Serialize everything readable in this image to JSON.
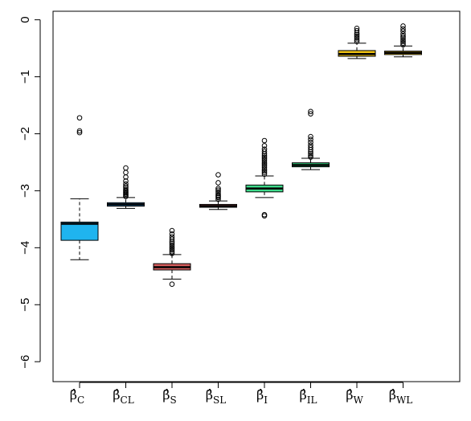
{
  "chart_data": {
    "type": "box",
    "title": "",
    "xlabel": "",
    "ylabel": "",
    "ylim": [
      -6.35,
      0.15
    ],
    "y_ticks": [
      0,
      -1,
      -2,
      -3,
      -4,
      -5,
      -6
    ],
    "y_tick_labels": [
      "0",
      "−1",
      "−2",
      "−3",
      "−4",
      "−5",
      "−6"
    ],
    "grid": false,
    "legend": "none",
    "categories": [
      {
        "symbol": "β̂",
        "sub": "C",
        "color": "#1fb4ef",
        "whisker_low": -4.21,
        "q1": -3.87,
        "median": -3.58,
        "q3": -3.55,
        "whisker_high": -3.14,
        "outliers": [
          -1.72,
          -1.95,
          -1.98
        ]
      },
      {
        "symbol": "β̂",
        "sub": "CL",
        "color": "#2a93d8",
        "whisker_low": -3.31,
        "q1": -3.27,
        "median": -3.24,
        "q3": -3.21,
        "whisker_high": -3.12,
        "outliers": [
          -3.1,
          -3.08,
          -3.06,
          -3.04,
          -3.02,
          -3.0,
          -2.98,
          -2.95,
          -2.92,
          -2.88,
          -2.83,
          -2.76,
          -2.68,
          -2.6
        ]
      },
      {
        "symbol": "β̂",
        "sub": "S",
        "color": "#d85e5e",
        "whisker_low": -4.55,
        "q1": -4.39,
        "median": -4.34,
        "q3": -4.28,
        "whisker_high": -4.12,
        "outliers": [
          -4.64,
          -4.1,
          -4.07,
          -4.04,
          -4.01,
          -3.98,
          -3.95,
          -3.92,
          -3.89,
          -3.85,
          -3.81,
          -3.76,
          -3.7
        ]
      },
      {
        "symbol": "β̂",
        "sub": "SL",
        "color": "#b85c5c",
        "whisker_low": -3.33,
        "q1": -3.29,
        "median": -3.27,
        "q3": -3.24,
        "whisker_high": -3.18,
        "outliers": [
          -3.15,
          -3.12,
          -3.1,
          -3.08,
          -3.05,
          -3.02,
          -2.99,
          -2.96,
          -2.86,
          -2.72
        ]
      },
      {
        "symbol": "β̂",
        "sub": "I",
        "color": "#3ed98a",
        "whisker_low": -3.12,
        "q1": -3.02,
        "median": -2.96,
        "q3": -2.9,
        "whisker_high": -2.74,
        "outliers": [
          -3.42,
          -3.44,
          -2.71,
          -2.68,
          -2.65,
          -2.62,
          -2.59,
          -2.56,
          -2.53,
          -2.5,
          -2.47,
          -2.44,
          -2.41,
          -2.38,
          -2.35,
          -2.31,
          -2.27,
          -2.21,
          -2.12
        ]
      },
      {
        "symbol": "β̂",
        "sub": "IL",
        "color": "#2ebd73",
        "whisker_low": -2.63,
        "q1": -2.58,
        "median": -2.55,
        "q3": -2.51,
        "whisker_high": -2.43,
        "outliers": [
          -2.41,
          -2.38,
          -2.35,
          -2.32,
          -2.28,
          -2.24,
          -2.2,
          -2.15,
          -2.1,
          -2.05,
          -1.65,
          -1.61
        ]
      },
      {
        "symbol": "β̂",
        "sub": "W",
        "color": "#eec214",
        "whisker_low": -0.68,
        "q1": -0.64,
        "median": -0.6,
        "q3": -0.54,
        "whisker_high": -0.41,
        "outliers": [
          -0.38,
          -0.35,
          -0.32,
          -0.29,
          -0.26,
          -0.23,
          -0.19,
          -0.15
        ]
      },
      {
        "symbol": "β̂",
        "sub": "WL",
        "color": "#f0c010",
        "whisker_low": -0.65,
        "q1": -0.61,
        "median": -0.58,
        "q3": -0.55,
        "whisker_high": -0.46,
        "outliers": [
          -0.44,
          -0.41,
          -0.38,
          -0.35,
          -0.32,
          -0.29,
          -0.25,
          -0.2,
          -0.16,
          -0.11
        ]
      }
    ]
  }
}
